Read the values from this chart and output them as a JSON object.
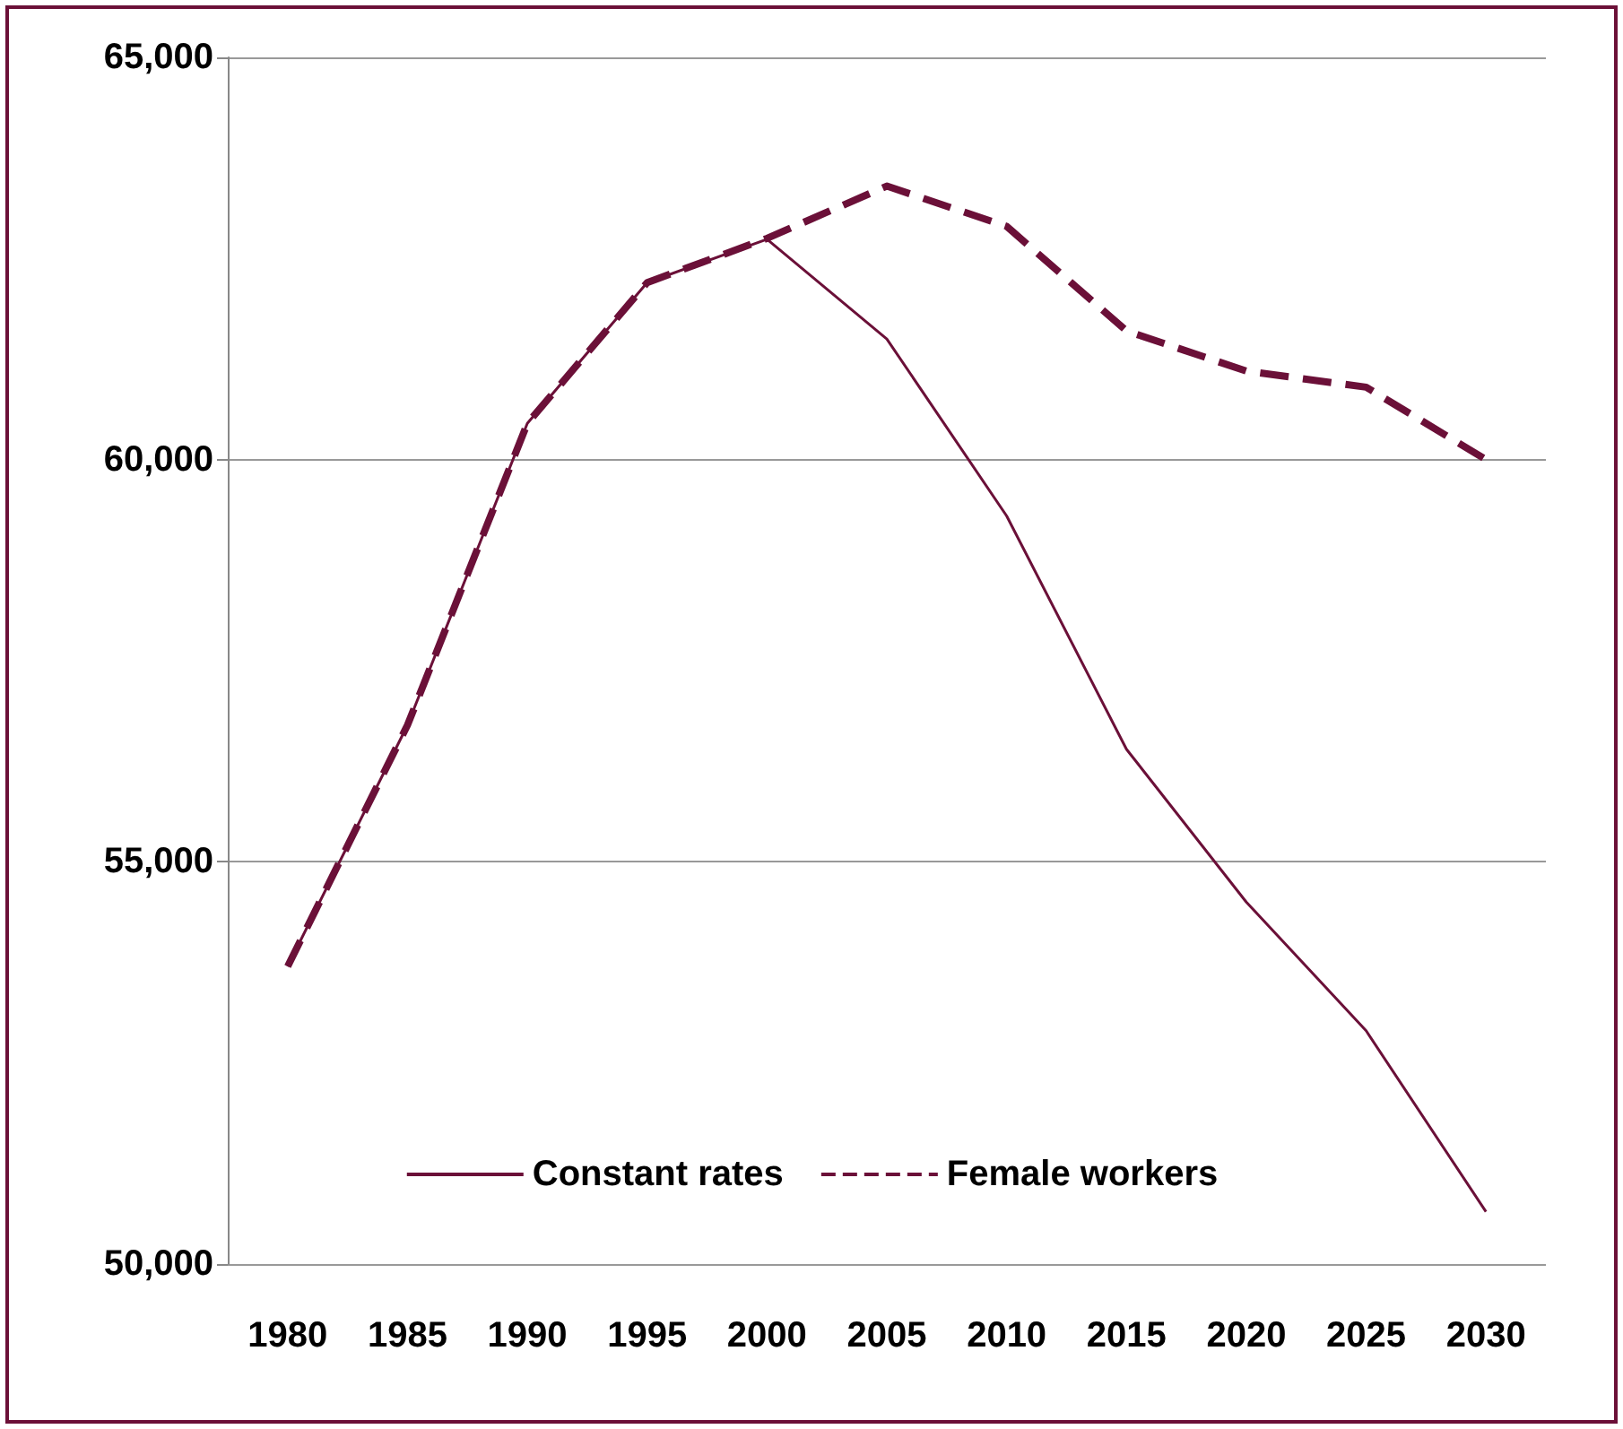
{
  "chart_data": {
    "type": "line",
    "categories": [
      "1980",
      "1985",
      "1990",
      "1995",
      "2000",
      "2005",
      "2010",
      "2015",
      "2020",
      "2025",
      "2030"
    ],
    "series": [
      {
        "name": "Constant rates",
        "color": "#6b1038",
        "line_style": "solid",
        "values": [
          53700,
          56700,
          60450,
          62200,
          62740,
          61500,
          59300,
          56400,
          54500,
          52900,
          50650
        ]
      },
      {
        "name": "Female workers",
        "color": "#6b1038",
        "line_style": "dashed",
        "values": [
          53700,
          56700,
          60450,
          62200,
          62750,
          63400,
          62900,
          61600,
          61100,
          60900,
          60000
        ]
      }
    ],
    "ylim": [
      50000,
      65000
    ],
    "yticks": [
      {
        "value": 50000,
        "label": "50,000"
      },
      {
        "value": 55000,
        "label": "55,000"
      },
      {
        "value": 60000,
        "label": "60,000"
      },
      {
        "value": 65000,
        "label": "65,000"
      }
    ],
    "grid": "y",
    "legend": "bottom",
    "marker": "none"
  }
}
